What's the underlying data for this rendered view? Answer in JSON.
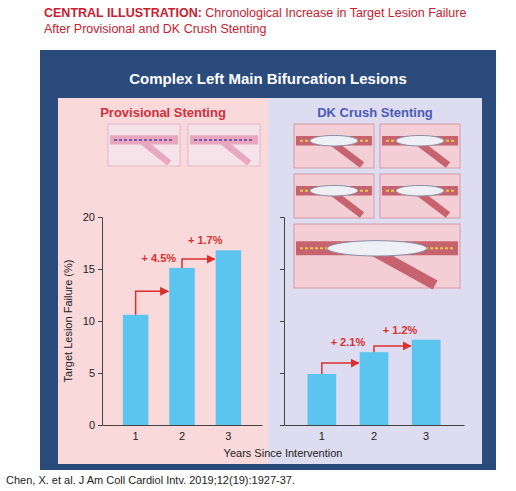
{
  "header": {
    "label": "CENTRAL ILLUSTRATION:",
    "title": "Chronological Increase in Target Lesion Failure After Provisional and DK Crush Stenting"
  },
  "box_title": "Complex Left Main Bifurcation Lesions",
  "citation": "Chen, X. et al. J Am Coll Cardiol Intv. 2019;12(19):1927-37.",
  "chart_data": [
    {
      "type": "bar",
      "title": "Provisional Stenting",
      "categories": [
        "1",
        "2",
        "3"
      ],
      "values": [
        10.6,
        15.1,
        16.8
      ],
      "color": "#5bc5ef",
      "ylim": [
        0,
        20
      ],
      "yticks": [
        0,
        5,
        10,
        15,
        20
      ],
      "ylabel": "Target Lesion Failure (%)",
      "xlabel": "Years Since Intervention",
      "annotations": [
        "+ 4.5%",
        "+ 1.7%"
      ]
    },
    {
      "type": "bar",
      "title": "DK Crush Stenting",
      "categories": [
        "1",
        "2",
        "3"
      ],
      "values": [
        4.9,
        7.0,
        8.2
      ],
      "color": "#5bc5ef",
      "ylim": [
        0,
        20
      ],
      "yticks": [
        0,
        5,
        10,
        15,
        20
      ],
      "tick_labels": "x",
      "annotations": [
        "+ 2.1%",
        "+ 1.2%"
      ]
    }
  ]
}
